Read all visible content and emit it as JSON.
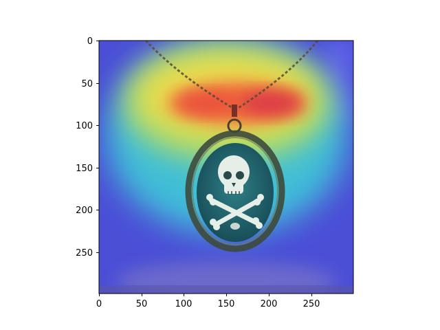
{
  "image": {
    "subject": "necklace with skull and crossbones cameo pendant",
    "overlay": "jet-colormap attention heatmap"
  },
  "axes": {
    "x_ticks": [
      "0",
      "50",
      "100",
      "150",
      "200",
      "250"
    ],
    "y_ticks": [
      "0",
      "50",
      "100",
      "150",
      "200",
      "250"
    ],
    "xlim": [
      0,
      299
    ],
    "ylim": [
      299,
      0
    ]
  },
  "colors": {
    "heatmap_hot": "#e83a3a",
    "heatmap_mid": "#f2e04a",
    "heatmap_cool": "#3ad0d8",
    "heatmap_cold": "#3a3adc",
    "cameo_bg": "#1e5e68",
    "skull": "#e8efe9"
  }
}
